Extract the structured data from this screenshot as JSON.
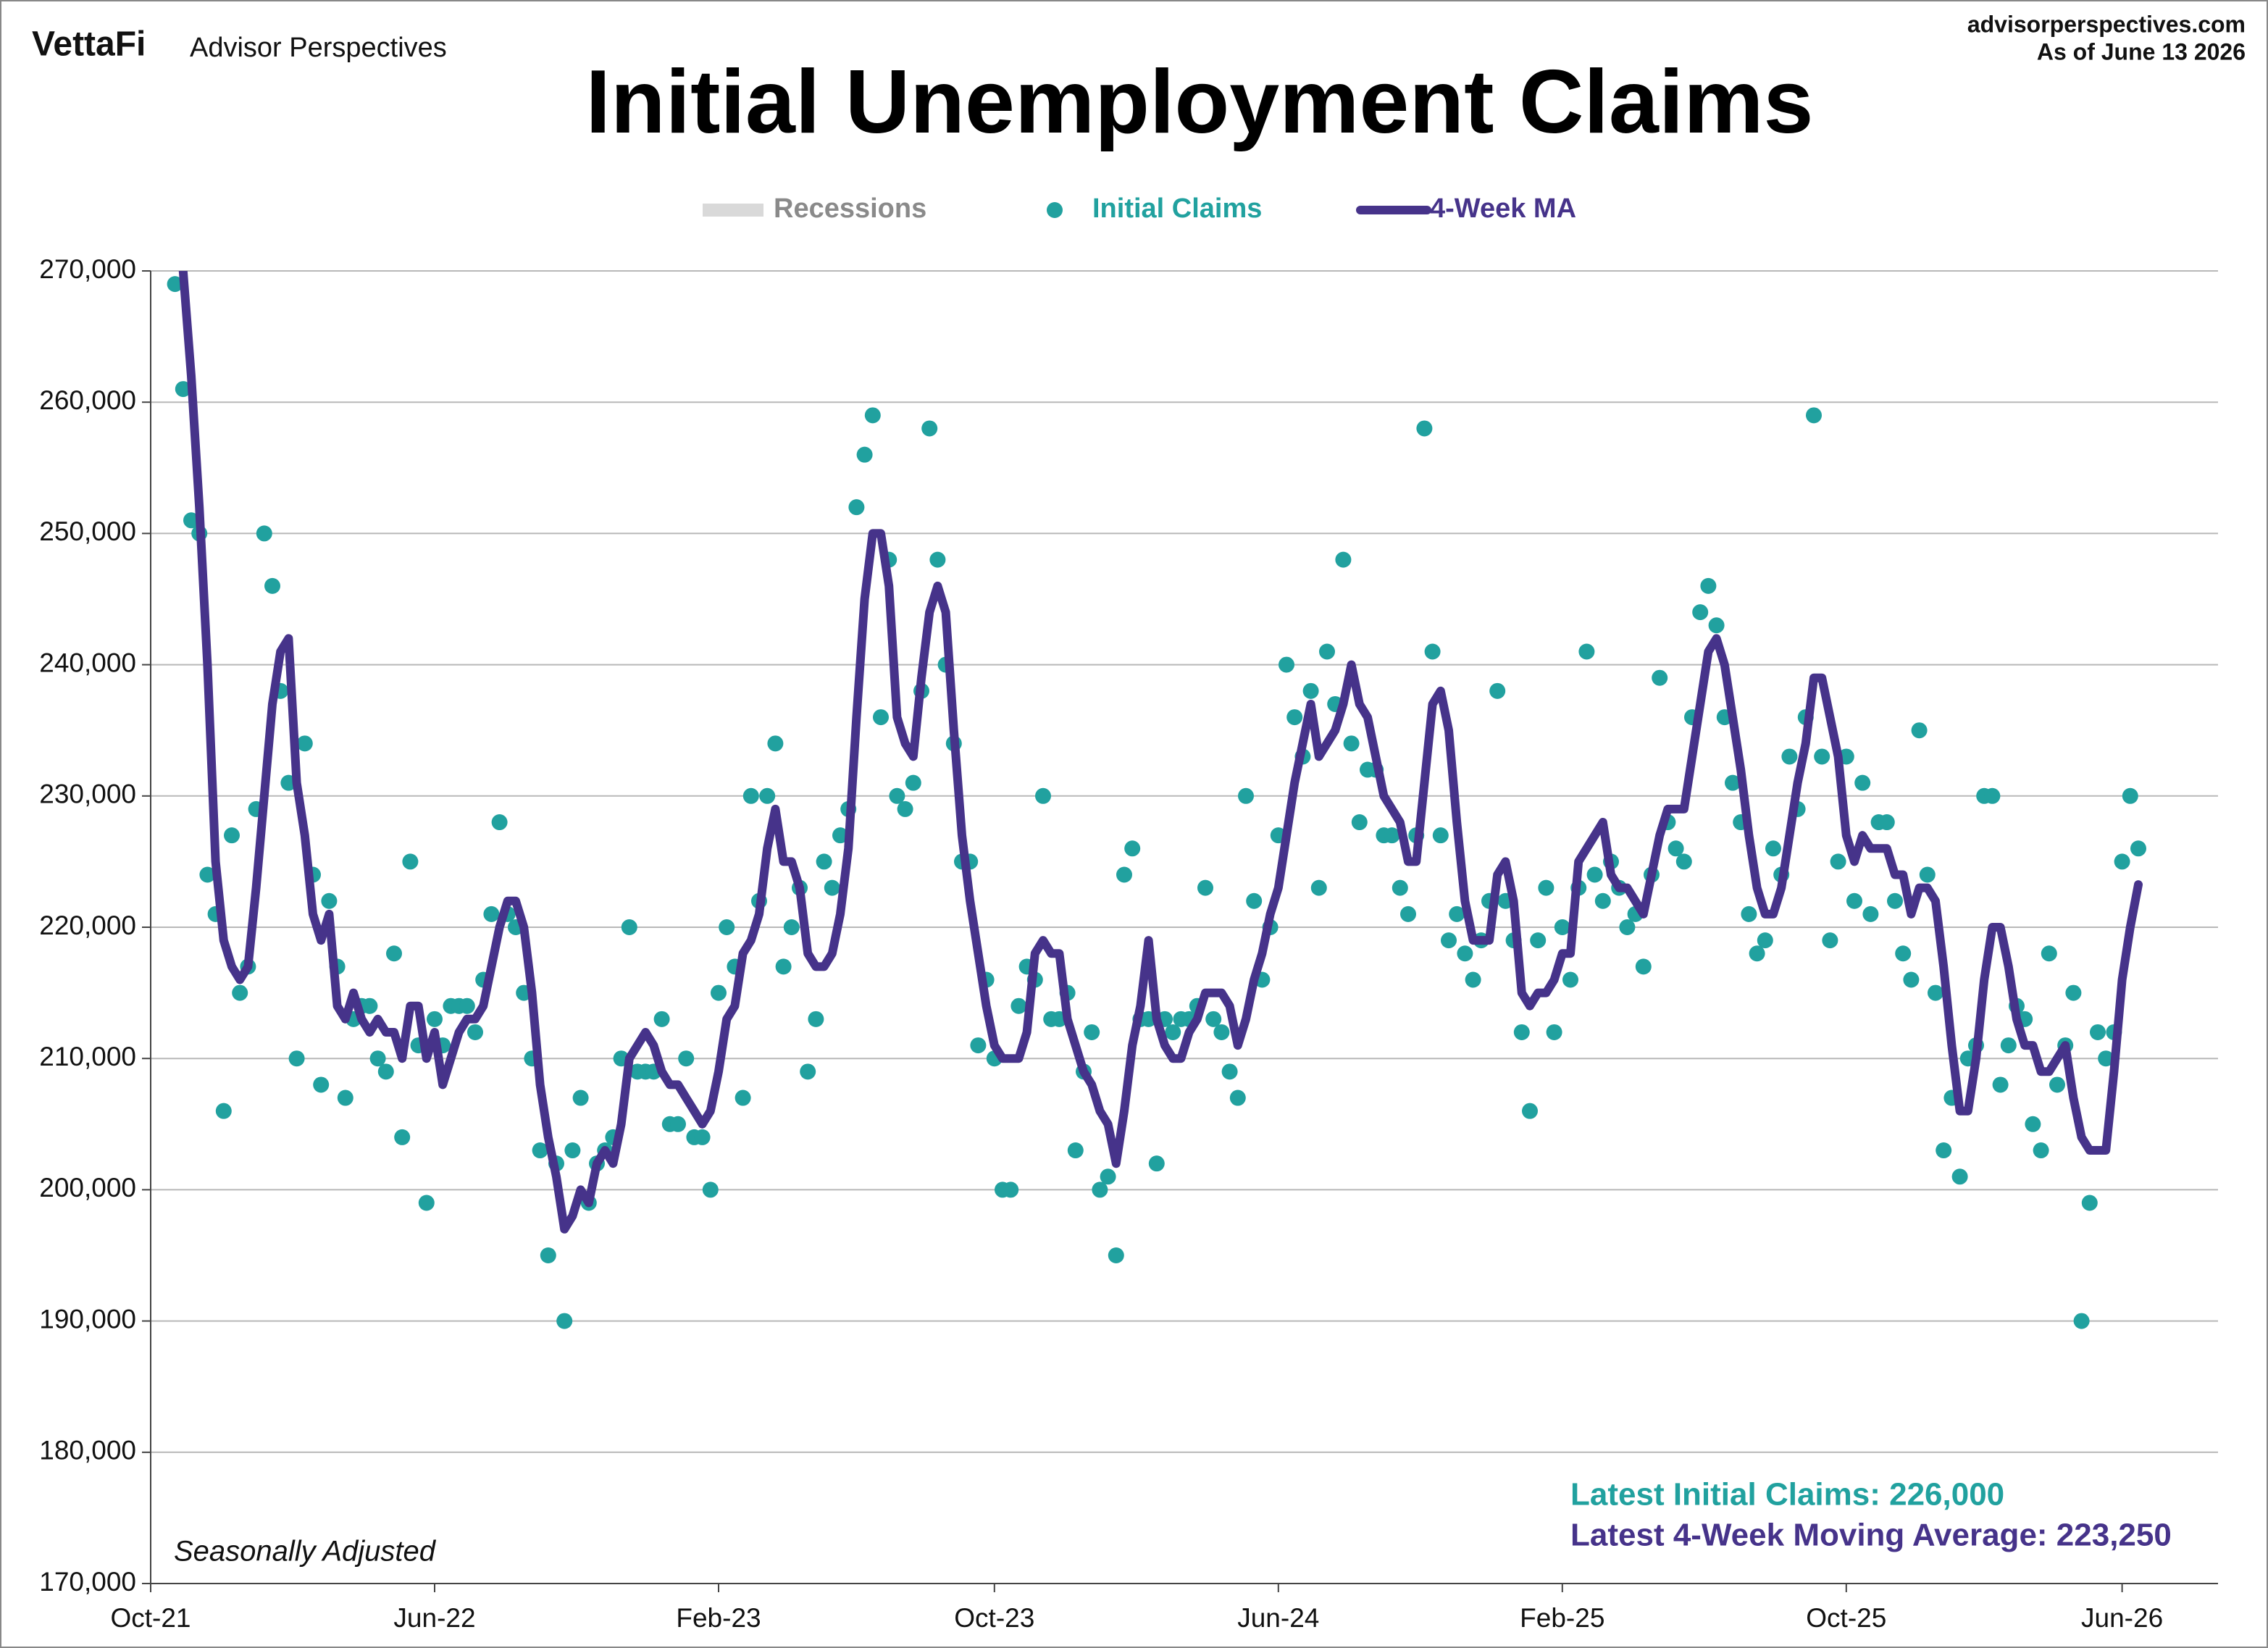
{
  "header": {
    "logo": "VettaFi",
    "brand": "Advisor Perspectives",
    "website": "advisorperspectives.com",
    "as_of": "As of June 13 2026"
  },
  "chart_data": {
    "type": "line",
    "title": "Initial Unemployment Claims",
    "note": "Seasonally Adjusted",
    "annotations": [
      "Latest Initial Claims: 226,000",
      "Latest 4-Week Moving Average: 223,250"
    ],
    "recessions": {
      "name": "Recessions",
      "color": "#d9d9d9"
    },
    "grid": true,
    "ylim": [
      170000,
      270000
    ],
    "yticks": [
      {
        "value": 170000,
        "label": "170,000"
      },
      {
        "value": 180000,
        "label": "180,000"
      },
      {
        "value": 190000,
        "label": "190,000"
      },
      {
        "value": 200000,
        "label": "200,000"
      },
      {
        "value": 210000,
        "label": "210,000"
      },
      {
        "value": 220000,
        "label": "220,000"
      },
      {
        "value": 230000,
        "label": "230,000"
      },
      {
        "value": 240000,
        "label": "240,000"
      },
      {
        "value": 250000,
        "label": "250,000"
      },
      {
        "value": 260000,
        "label": "260,000"
      },
      {
        "value": 270000,
        "label": "270,000"
      }
    ],
    "categories": [
      "Oct-21",
      null,
      null,
      null,
      null,
      null,
      null,
      null,
      null,
      null,
      null,
      null,
      null,
      null,
      null,
      null,
      null,
      null,
      null,
      null,
      null,
      null,
      null,
      null,
      null,
      null,
      null,
      null,
      null,
      null,
      null,
      null,
      null,
      null,
      null,
      "Jun-22",
      null,
      null,
      null,
      null,
      null,
      null,
      null,
      null,
      null,
      null,
      null,
      null,
      null,
      null,
      null,
      null,
      null,
      null,
      null,
      null,
      null,
      null,
      null,
      null,
      null,
      null,
      null,
      null,
      null,
      null,
      null,
      null,
      null,
      null,
      "Feb-23",
      null,
      null,
      null,
      null,
      null,
      null,
      null,
      null,
      null,
      null,
      null,
      null,
      null,
      null,
      null,
      null,
      null,
      null,
      null,
      null,
      null,
      null,
      null,
      null,
      null,
      null,
      null,
      null,
      null,
      null,
      null,
      null,
      null,
      "Oct-23",
      null,
      null,
      null,
      null,
      null,
      null,
      null,
      null,
      null,
      null,
      null,
      null,
      null,
      null,
      null,
      null,
      null,
      null,
      null,
      null,
      null,
      null,
      null,
      null,
      null,
      null,
      null,
      null,
      null,
      null,
      null,
      null,
      null,
      null,
      "Jun-24",
      null,
      null,
      null,
      null,
      null,
      null,
      null,
      null,
      null,
      null,
      null,
      null,
      null,
      null,
      null,
      null,
      null,
      null,
      null,
      null,
      null,
      null,
      null,
      null,
      null,
      null,
      null,
      null,
      null,
      null,
      null,
      null,
      null,
      null,
      "Feb-25",
      null,
      null,
      null,
      null,
      null,
      null,
      null,
      null,
      null,
      null,
      null,
      null,
      null,
      null,
      null,
      null,
      null,
      null,
      null,
      null,
      null,
      null,
      null,
      null,
      null,
      null,
      null,
      null,
      null,
      null,
      null,
      null,
      null,
      null,
      "Oct-25",
      null,
      null,
      null,
      null,
      null,
      null,
      null,
      null,
      null,
      null,
      null,
      null,
      null,
      null,
      null,
      null,
      null,
      null,
      null,
      null,
      null,
      null,
      null,
      null,
      null,
      null,
      null,
      null,
      null,
      null,
      null,
      null,
      null,
      "Jun-26",
      null,
      null
    ],
    "series": [
      {
        "name": "Initial Claims",
        "type": "scatter",
        "color": "#21a19f",
        "values": [
          null,
          null,
          null,
          269000,
          261000,
          251000,
          250000,
          224000,
          221000,
          206000,
          227000,
          215000,
          217000,
          229000,
          250000,
          246000,
          238000,
          231000,
          210000,
          234000,
          224000,
          208000,
          222000,
          217000,
          207000,
          213000,
          214000,
          214000,
          210000,
          209000,
          218000,
          204000,
          225000,
          211000,
          199000,
          213000,
          211000,
          214000,
          214000,
          214000,
          212000,
          216000,
          221000,
          228000,
          221000,
          220000,
          215000,
          210000,
          203000,
          195000,
          202000,
          190000,
          203000,
          207000,
          199000,
          202000,
          203000,
          204000,
          210000,
          220000,
          209000,
          209000,
          209000,
          213000,
          205000,
          205000,
          210000,
          204000,
          204000,
          200000,
          215000,
          220000,
          217000,
          207000,
          230000,
          222000,
          230000,
          234000,
          217000,
          220000,
          223000,
          209000,
          213000,
          225000,
          223000,
          227000,
          229000,
          252000,
          256000,
          259000,
          236000,
          248000,
          230000,
          229000,
          231000,
          238000,
          258000,
          248000,
          240000,
          234000,
          225000,
          225000,
          211000,
          216000,
          210000,
          200000,
          200000,
          214000,
          217000,
          216000,
          230000,
          213000,
          213000,
          215000,
          203000,
          209000,
          212000,
          200000,
          201000,
          195000,
          224000,
          226000,
          213000,
          213000,
          202000,
          213000,
          212000,
          213000,
          213000,
          214000,
          223000,
          213000,
          212000,
          209000,
          207000,
          230000,
          222000,
          216000,
          220000,
          227000,
          240000,
          236000,
          233000,
          238000,
          223000,
          241000,
          237000,
          248000,
          234000,
          228000,
          232000,
          232000,
          227000,
          227000,
          223000,
          221000,
          227000,
          258000,
          241000,
          227000,
          219000,
          221000,
          218000,
          216000,
          219000,
          222000,
          238000,
          222000,
          219000,
          212000,
          206000,
          219000,
          223000,
          212000,
          220000,
          216000,
          223000,
          241000,
          224000,
          222000,
          225000,
          223000,
          220000,
          221000,
          217000,
          224000,
          239000,
          228000,
          226000,
          225000,
          236000,
          244000,
          246000,
          243000,
          236000,
          231000,
          228000,
          221000,
          218000,
          219000,
          226000,
          224000,
          233000,
          229000,
          236000,
          259000,
          233000,
          219000,
          225000,
          233000,
          222000,
          231000,
          221000,
          228000,
          228000,
          222000,
          218000,
          216000,
          235000,
          224000,
          215000,
          203000,
          207000,
          201000,
          210000,
          211000,
          230000,
          230000,
          208000,
          211000,
          214000,
          213000,
          205000,
          203000,
          218000,
          208000,
          211000,
          215000,
          190000,
          199000,
          212000,
          210000,
          212000,
          225000,
          230000,
          226000
        ]
      },
      {
        "name": "4-Week MA",
        "type": "line",
        "color": "#46338a",
        "values": [
          null,
          null,
          null,
          null,
          270000,
          262000,
          252000,
          240000,
          225000,
          219000,
          217000,
          216000,
          217000,
          223000,
          230000,
          237000,
          241000,
          242000,
          231000,
          227000,
          221000,
          219000,
          221000,
          214000,
          213000,
          215000,
          213000,
          212000,
          213000,
          212000,
          212000,
          210000,
          214000,
          214000,
          210000,
          212000,
          208000,
          210000,
          212000,
          213000,
          213000,
          214000,
          217000,
          220000,
          222000,
          222000,
          220000,
          215000,
          208000,
          204000,
          201000,
          197000,
          198000,
          200000,
          199000,
          202000,
          203000,
          202000,
          205000,
          210000,
          211000,
          212000,
          211000,
          209000,
          208000,
          208000,
          207000,
          206000,
          205000,
          206000,
          209000,
          213000,
          214000,
          218000,
          219000,
          221000,
          226000,
          229000,
          225000,
          225000,
          223000,
          218000,
          217000,
          217000,
          218000,
          221000,
          226000,
          236000,
          245000,
          250000,
          250000,
          246000,
          236000,
          234000,
          233000,
          239000,
          244000,
          246000,
          244000,
          235000,
          227000,
          222000,
          218000,
          214000,
          211000,
          210000,
          210000,
          210000,
          212000,
          218000,
          219000,
          218000,
          218000,
          213000,
          211000,
          209000,
          208000,
          206000,
          205000,
          202000,
          206000,
          211000,
          214000,
          219000,
          213000,
          211000,
          210000,
          210000,
          212000,
          213000,
          215000,
          215000,
          215000,
          214000,
          211000,
          213000,
          216000,
          218000,
          221000,
          223000,
          227000,
          231000,
          234000,
          237000,
          233000,
          234000,
          235000,
          237000,
          240000,
          237000,
          236000,
          233000,
          230000,
          229000,
          228000,
          225000,
          225000,
          231000,
          237000,
          238000,
          235000,
          228000,
          222000,
          219000,
          219000,
          219000,
          224000,
          225000,
          222000,
          215000,
          214000,
          215000,
          215000,
          216000,
          218000,
          218000,
          225000,
          226000,
          227000,
          228000,
          224000,
          223000,
          223000,
          222000,
          221000,
          224000,
          227000,
          229000,
          229000,
          229000,
          233000,
          237000,
          241000,
          242000,
          240000,
          236000,
          232000,
          227000,
          223000,
          221000,
          221000,
          223000,
          227000,
          231000,
          234000,
          239000,
          239000,
          236000,
          233000,
          227000,
          225000,
          227000,
          226000,
          226000,
          226000,
          224000,
          224000,
          221000,
          223000,
          223000,
          222000,
          217000,
          211000,
          206000,
          206000,
          210000,
          216000,
          220000,
          220000,
          217000,
          213000,
          211000,
          211000,
          209000,
          209000,
          210000,
          211000,
          207000,
          204000,
          203000,
          203000,
          203000,
          209000,
          216000,
          220000,
          223250
        ]
      }
    ]
  }
}
